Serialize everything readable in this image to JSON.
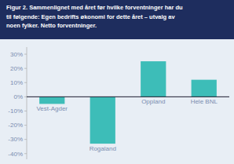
{
  "chart_data": {
    "type": "bar",
    "title": "Figur 2. Sammenlignet med året før hvilke forventninger har du\ntil følgende: Egen bedrifts økonomi for dette året – utvalg av\nnoen fylker. Netto forventninger.",
    "categories": [
      "Vest-Agder",
      "Rogaland",
      "Oppland",
      "Hele BNL"
    ],
    "values": [
      -5,
      -33,
      25,
      12
    ],
    "color": "#3dbdb8",
    "ylim": [
      -44,
      35
    ],
    "yticks": [
      {
        "value": -40,
        "label": "-40%"
      },
      {
        "value": -30,
        "label": "-30%"
      },
      {
        "value": -20,
        "label": "-20%"
      },
      {
        "value": -10,
        "label": "-10%"
      },
      {
        "value": 0,
        "label": "0%"
      },
      {
        "value": 10,
        "label": "10%"
      },
      {
        "value": 20,
        "label": "20%"
      },
      {
        "value": 30,
        "label": "30%"
      }
    ],
    "grid": false
  }
}
